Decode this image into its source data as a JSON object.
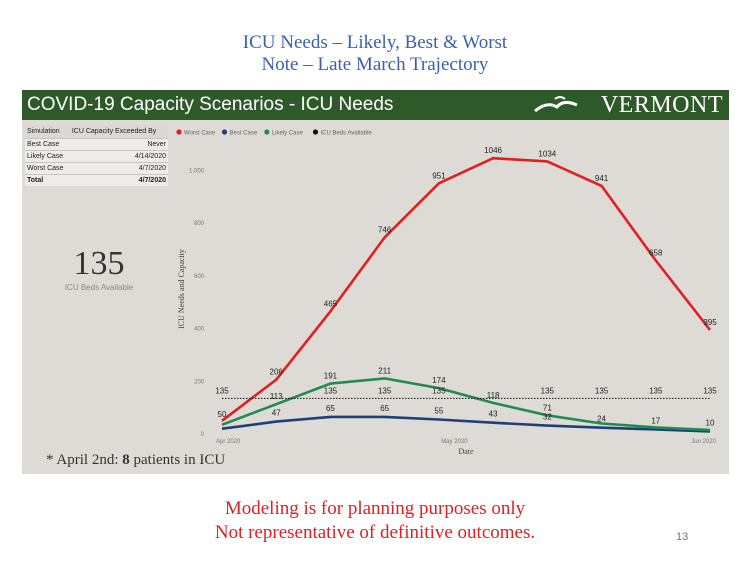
{
  "slide": {
    "title_line1": "ICU Needs – Likely, Best & Worst",
    "title_line2": "Note – Late March Trajectory",
    "bottom_line1": "Modeling is for planning purposes only",
    "bottom_line2": "Not representative of definitive outcomes.",
    "page_number": "13"
  },
  "banner": {
    "title": "COVID-19 Capacity Scenarios - ICU Needs",
    "brand": "VERMONT",
    "color": "#2e5a2a"
  },
  "table": {
    "headers": [
      "Simulation",
      "ICU Capacity Exceeded By"
    ],
    "rows": [
      {
        "name": "Best Case",
        "value": "Never"
      },
      {
        "name": "Likely Case",
        "value": "4/14/2020"
      },
      {
        "name": "Worst Case",
        "value": "4/7/2020"
      }
    ],
    "total": {
      "name": "Total",
      "value": "4/7/2020"
    }
  },
  "kpi": {
    "value": "135",
    "label": "ICU Beds Available"
  },
  "footnote": {
    "prefix": "* April 2nd: ",
    "bold": "8",
    "suffix": " patients in ICU"
  },
  "chart_data": {
    "type": "line",
    "x": [
      "2020-04-01",
      "2020-04-08",
      "2020-04-15",
      "2020-04-22",
      "2020-04-29",
      "2020-05-06",
      "2020-05-13",
      "2020-05-20",
      "2020-05-27",
      "2020-06-03"
    ],
    "xticks": [
      "Apr 2020",
      "May 2020",
      "Jun 2020"
    ],
    "xlabel": "Date",
    "ylabel": "ICU Needs and Capacity",
    "ylim": [
      0,
      1100
    ],
    "yticks": [
      "0",
      "200",
      "400",
      "600",
      "800",
      "1,000"
    ],
    "legend_position": "top-left",
    "grid": false,
    "series": [
      {
        "name": "Worst Case",
        "color": "#e02020",
        "style": "solid",
        "values": [
          50,
          206,
          465,
          746,
          951,
          1046,
          1034,
          941,
          658,
          395
        ],
        "labels": [
          "50",
          "206",
          "465",
          "746",
          "951",
          "1046",
          "1034",
          "941",
          "658",
          "395"
        ]
      },
      {
        "name": "Best Case",
        "color": "#1f3f78",
        "style": "solid",
        "values": [
          20,
          47,
          65,
          65,
          55,
          43,
          32,
          24,
          17,
          10
        ],
        "labels": [
          "",
          "47",
          "65",
          "65",
          "55",
          "43",
          "32",
          "24",
          "17",
          "10"
        ]
      },
      {
        "name": "Likely Case",
        "color": "#1e8c4c",
        "style": "solid",
        "values": [
          35,
          113,
          191,
          211,
          174,
          118,
          71,
          40,
          25,
          15
        ],
        "labels": [
          "",
          "113",
          "191",
          "211",
          "174",
          "118",
          "71",
          "",
          "",
          ""
        ]
      },
      {
        "name": "ICU Beds Available",
        "color": "#111111",
        "style": "dotted",
        "values": [
          135,
          135,
          135,
          135,
          135,
          135,
          135,
          135,
          135,
          135
        ],
        "labels": [
          "135",
          "",
          "135",
          "135",
          "135",
          "",
          "135",
          "135",
          "135",
          "135"
        ]
      }
    ]
  }
}
